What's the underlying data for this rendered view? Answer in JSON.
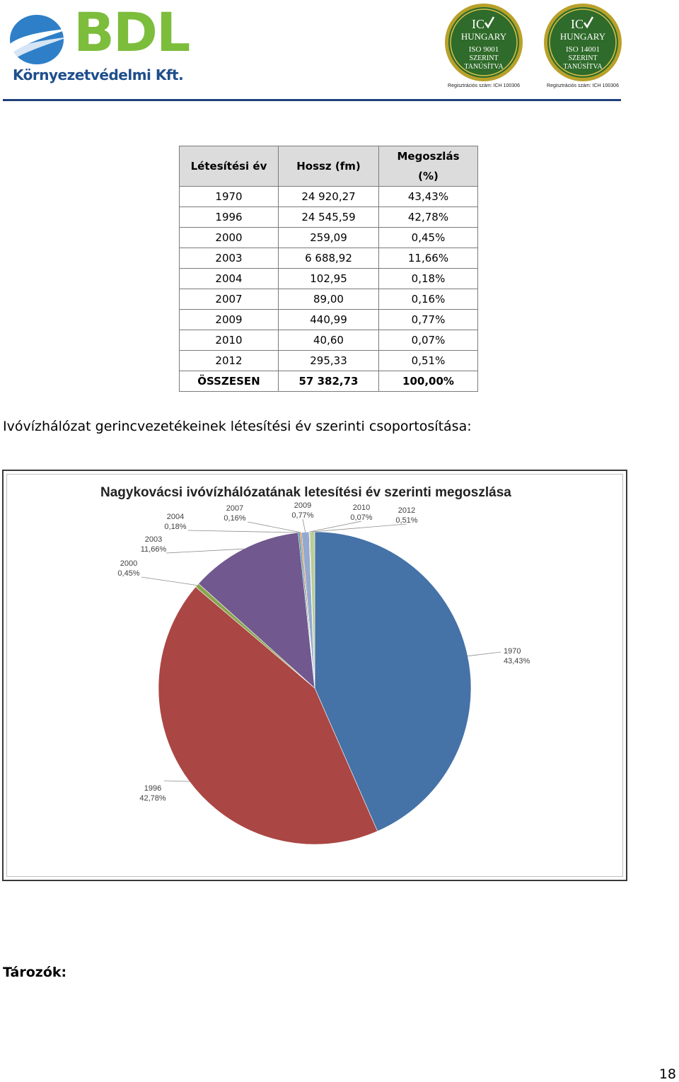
{
  "header": {
    "logo_main": "BDL",
    "logo_sub": "Környezetvédelmi Kft.",
    "seals": [
      {
        "line1": "IC",
        "line2": "HUNGARY",
        "line3": "ISO 9001",
        "line4": "SZERINT",
        "line5": "TANÚSÍTVA",
        "reg": "Regisztrációs szám: ICH 100306"
      },
      {
        "line1": "IC",
        "line2": "HUNGARY",
        "line3": "ISO 14001",
        "line4": "SZERINT",
        "line5": "TANÚSÍTVA",
        "reg": "Regisztrációs szám: ICH 100306"
      }
    ]
  },
  "table": {
    "headers": [
      "Létesítési év",
      "Hossz (fm)",
      "Megoszlás (%)"
    ],
    "rows": [
      [
        "1970",
        "24 920,27",
        "43,43%"
      ],
      [
        "1996",
        "24 545,59",
        "42,78%"
      ],
      [
        "2000",
        "259,09",
        "0,45%"
      ],
      [
        "2003",
        "6 688,92",
        "11,66%"
      ],
      [
        "2004",
        "102,95",
        "0,18%"
      ],
      [
        "2007",
        "89,00",
        "0,16%"
      ],
      [
        "2009",
        "440,99",
        "0,77%"
      ],
      [
        "2010",
        "40,60",
        "0,07%"
      ],
      [
        "2012",
        "295,33",
        "0,51%"
      ]
    ],
    "total": [
      "ÖSSZESEN",
      "57 382,73",
      "100,00%"
    ]
  },
  "caption": "Ivóvízhálózat gerincvezetékeinek létesítési év szerinti csoportosítása:",
  "chart_data": {
    "type": "pie",
    "title": "Nagykovácsi ivóvízhálózatának letesítési év szerinti megoszlása",
    "categories": [
      "1970",
      "1996",
      "2000",
      "2003",
      "2004",
      "2007",
      "2009",
      "2010",
      "2012"
    ],
    "values": [
      43.43,
      42.78,
      0.45,
      11.66,
      0.18,
      0.16,
      0.77,
      0.07,
      0.51
    ],
    "value_labels": [
      "43,43%",
      "42,78%",
      "0,45%",
      "11,66%",
      "0,18%",
      "0,16%",
      "0,77%",
      "0,07%",
      "0,51%"
    ],
    "colors": [
      "#4572a7",
      "#aa4643",
      "#89a54e",
      "#71588f",
      "#4198af",
      "#db843d",
      "#93a9cf",
      "#d19392",
      "#b9cd96"
    ],
    "start": "12 o'clock, clockwise",
    "legend": "none"
  },
  "heading2": "Tározók:",
  "page_number": "18"
}
